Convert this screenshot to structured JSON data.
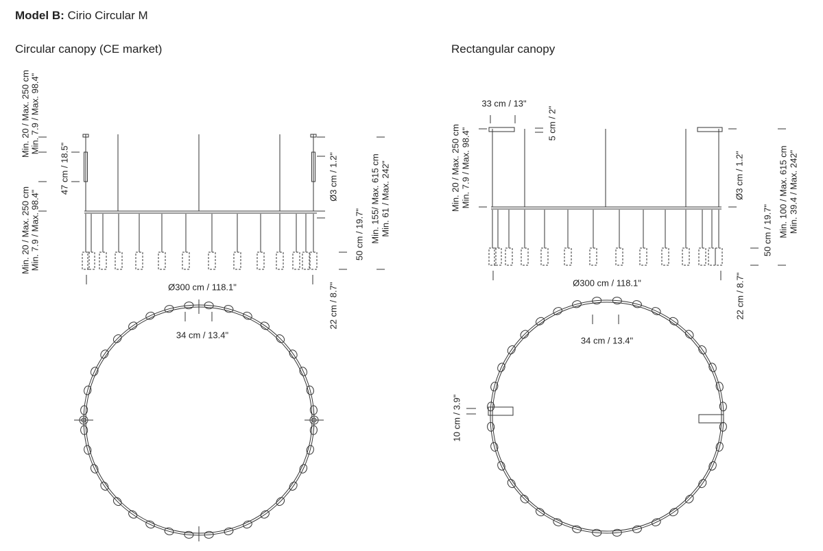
{
  "header": {
    "bold": "Model B:",
    "title": "Cirio Circular M"
  },
  "left": {
    "heading": "Circular canopy (CE market)",
    "labels": {
      "upper_cm": "Min. 20 / Max. 250 cm",
      "upper_in": "Min. 7.9 / Max. 98.4\"",
      "canopy": "47 cm / 18.5\"",
      "lower_cm": "Min. 20 / Max. 250 cm",
      "lower_in": "Min. 7.9 / Max. 98.4\"",
      "tube": "Ø3 cm / 1.2\"",
      "drop": "50 cm / 19.7\"",
      "total_cm": "Min. 155/ Max. 615 cm",
      "total_in": "Min. 61 / Max. 242\"",
      "shade": "22 cm / 8.7\"",
      "diameter": "Ø300 cm / 118.1\"",
      "spacing": "34 cm / 13.4\""
    }
  },
  "right": {
    "heading": "Rectangular canopy",
    "labels": {
      "canopy_width": "33 cm / 13\"",
      "canopy_height": "5 cm / 2\"",
      "upper_cm": "Min. 20 / Max. 250 cm",
      "upper_in": "Min. 7.9 / Max. 98.4\"",
      "tube": "Ø3 cm / 1.2\"",
      "drop": "50 cm / 19.7\"",
      "total_cm": "Min. 100 / Max. 615 cm",
      "total_in": "Min. 39.4 / Max. 242\"",
      "shade": "22 cm / 8.7\"",
      "diameter": "Ø300 cm / 118.1\"",
      "spacing": "34 cm / 13.4\"",
      "canopy_depth": "10 cm / 3.9\""
    }
  }
}
